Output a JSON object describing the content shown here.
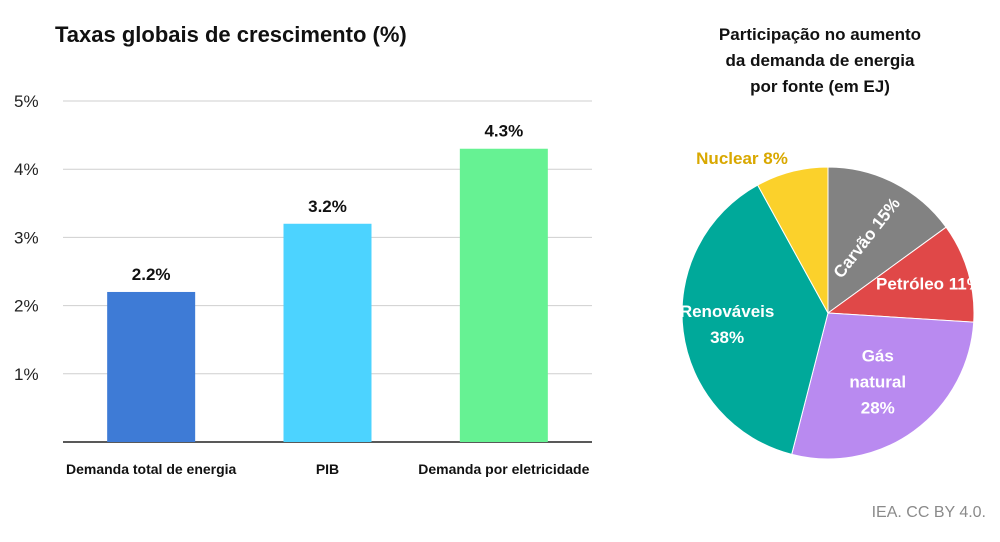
{
  "chart_data": [
    {
      "type": "bar",
      "title": "Taxas globais de crescimento (%)",
      "categories": [
        "Demanda total de energia",
        "PIB",
        "Demanda por eletricidade"
      ],
      "values": [
        2.2,
        3.2,
        4.3
      ],
      "value_labels": [
        "2.2%",
        "3.2%",
        "4.3%"
      ],
      "colors": [
        "#3e7bd6",
        "#4cd3ff",
        "#66f293"
      ],
      "ylim": [
        0,
        5
      ],
      "yticks": [
        1,
        2,
        3,
        4,
        5
      ],
      "ytick_labels": [
        "1%",
        "2%",
        "3%",
        "4%",
        "5%"
      ],
      "grid": true,
      "xlabel": "",
      "ylabel": ""
    },
    {
      "type": "pie",
      "title_lines": [
        "Participação no aumento",
        "da demanda de energia",
        "por fonte (em EJ)"
      ],
      "slices": [
        {
          "name": "Carvão",
          "label": "Carvão 15%",
          "value": 15,
          "color": "#828282",
          "text_color": "#ffffff"
        },
        {
          "name": "Petróleo",
          "label": "Petróleo 11%",
          "value": 11,
          "color": "#e04848",
          "text_color": "#ffffff"
        },
        {
          "name": "Gás natural",
          "label_lines": [
            "Gás",
            "natural",
            "28%"
          ],
          "value": 28,
          "color": "#b98af0",
          "text_color": "#ffffff"
        },
        {
          "name": "Renováveis",
          "label_lines": [
            "Renováveis",
            "38%"
          ],
          "value": 38,
          "color": "#00a99a",
          "text_color": "#ffffff"
        },
        {
          "name": "Nuclear",
          "label": "Nuclear 8%",
          "value": 8,
          "color": "#fbd12b",
          "text_color": "#d9a800"
        }
      ]
    }
  ],
  "credit": "IEA. CC BY 4.0."
}
